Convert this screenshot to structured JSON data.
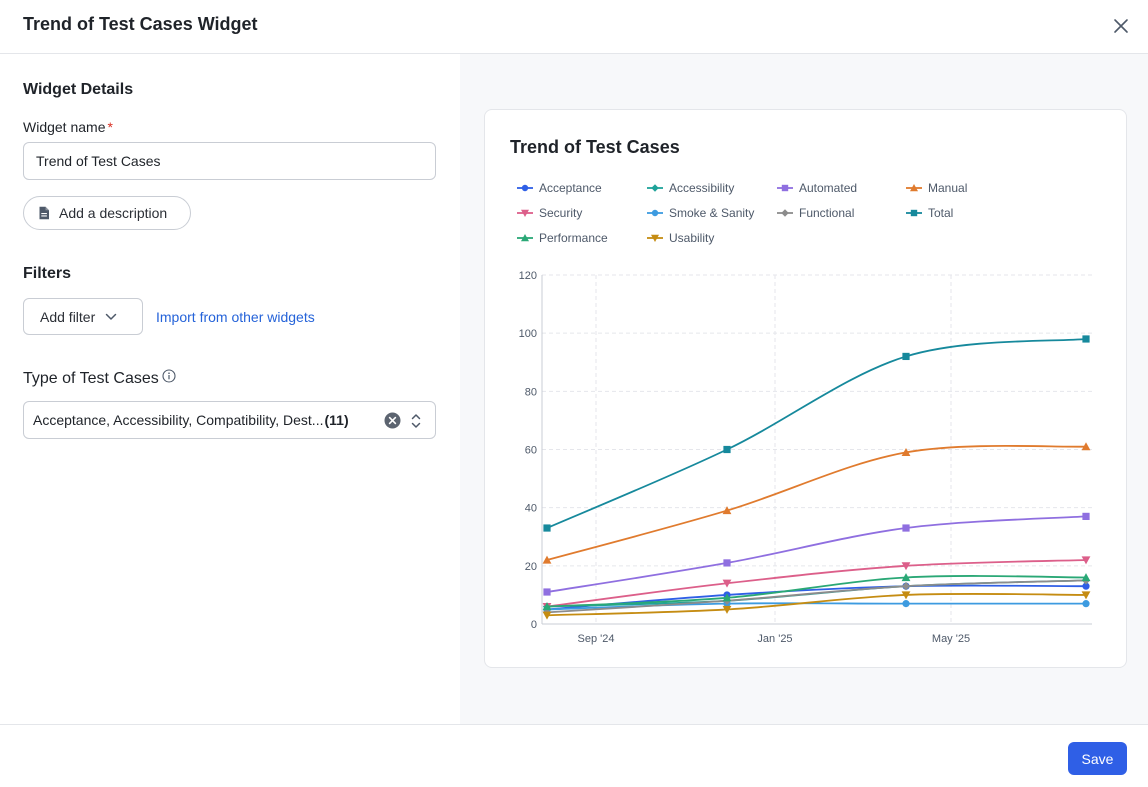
{
  "header": {
    "title": "Trend of Test Cases Widget"
  },
  "details": {
    "section_title": "Widget Details",
    "name_label": "Widget name",
    "required_mark": "*",
    "name_value": "Trend of Test Cases",
    "add_description_label": "Add a description"
  },
  "filters": {
    "section_title": "Filters",
    "add_filter_label": "Add filter",
    "import_label": "Import from other widgets"
  },
  "type": {
    "label": "Type of Test Cases",
    "selected_text": "Acceptance, Accessibility, Compatibility, Dest...",
    "count": "(11)"
  },
  "footer": {
    "save_label": "Save"
  },
  "colors": {
    "accent": "#2f5fe6",
    "link": "#2563d9"
  },
  "chart_data": {
    "type": "line",
    "title": "Trend of Test Cases",
    "x": [
      "Jul '24",
      "Dec '24",
      "Apr '25",
      "Aug '25"
    ],
    "x_ticks": [
      "Sep '24",
      "Jan '25",
      "May '25"
    ],
    "ylim": [
      0,
      120
    ],
    "y_ticks": [
      0,
      20,
      40,
      60,
      80,
      100,
      120
    ],
    "grid": true,
    "legend_position": "top",
    "series": [
      {
        "name": "Acceptance",
        "color": "#2f5fe6",
        "marker": "circle",
        "values": [
          5,
          10,
          13,
          13
        ]
      },
      {
        "name": "Accessibility",
        "color": "#1fa39a",
        "marker": "diamond",
        "values": [
          6,
          8,
          13,
          15
        ]
      },
      {
        "name": "Automated",
        "color": "#8f6fe0",
        "marker": "square",
        "values": [
          11,
          21,
          33,
          37
        ]
      },
      {
        "name": "Manual",
        "color": "#e07b2e",
        "marker": "triangle",
        "values": [
          22,
          39,
          59,
          61
        ]
      },
      {
        "name": "Security",
        "color": "#dc5f8a",
        "marker": "triangle-down",
        "values": [
          6,
          14,
          20,
          22
        ]
      },
      {
        "name": "Smoke & Sanity",
        "color": "#3d9be0",
        "marker": "circle",
        "values": [
          5,
          7,
          7,
          7
        ]
      },
      {
        "name": "Functional",
        "color": "#8c8c8c",
        "marker": "diamond",
        "values": [
          4,
          8,
          13,
          15
        ]
      },
      {
        "name": "Total",
        "color": "#16899c",
        "marker": "square",
        "values": [
          33,
          60,
          92,
          98
        ]
      },
      {
        "name": "Performance",
        "color": "#2aa876",
        "marker": "triangle",
        "values": [
          6,
          9,
          16,
          16
        ]
      },
      {
        "name": "Usability",
        "color": "#c58c12",
        "marker": "triangle-down",
        "values": [
          3,
          5,
          10,
          10
        ]
      }
    ]
  }
}
